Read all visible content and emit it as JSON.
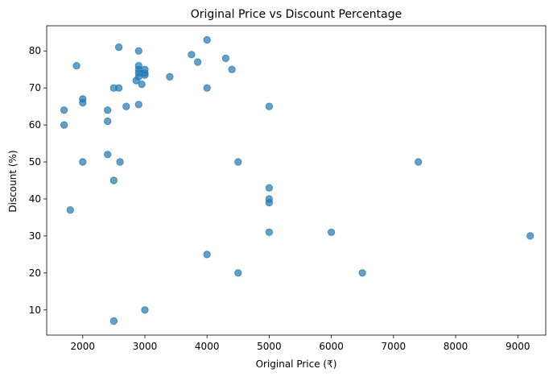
{
  "chart_data": {
    "type": "scatter",
    "title": "Original Price vs Discount Percentage",
    "xlabel": "Original Price (₹)",
    "ylabel": "Discount (%)",
    "xlim": [
      1420,
      9450
    ],
    "ylim": [
      3.2,
      86.8
    ],
    "xticks": [
      2000,
      3000,
      4000,
      5000,
      6000,
      7000,
      8000,
      9000
    ],
    "yticks": [
      10,
      20,
      30,
      40,
      50,
      60,
      70,
      80
    ],
    "grid": false,
    "marker_color": "#1f77b4",
    "marker_alpha": 0.7,
    "points": [
      {
        "x": 1700,
        "y": 64
      },
      {
        "x": 1700,
        "y": 60
      },
      {
        "x": 1800,
        "y": 37
      },
      {
        "x": 1900,
        "y": 76
      },
      {
        "x": 2000,
        "y": 67
      },
      {
        "x": 2000,
        "y": 66
      },
      {
        "x": 2000,
        "y": 50
      },
      {
        "x": 2400,
        "y": 64
      },
      {
        "x": 2400,
        "y": 61
      },
      {
        "x": 2400,
        "y": 52
      },
      {
        "x": 2500,
        "y": 70
      },
      {
        "x": 2500,
        "y": 45
      },
      {
        "x": 2500,
        "y": 7
      },
      {
        "x": 2580,
        "y": 81
      },
      {
        "x": 2580,
        "y": 70
      },
      {
        "x": 2600,
        "y": 50
      },
      {
        "x": 2700,
        "y": 65
      },
      {
        "x": 2860,
        "y": 72
      },
      {
        "x": 2900,
        "y": 80
      },
      {
        "x": 2900,
        "y": 76
      },
      {
        "x": 2900,
        "y": 75
      },
      {
        "x": 2900,
        "y": 74
      },
      {
        "x": 2900,
        "y": 73
      },
      {
        "x": 2900,
        "y": 65.5
      },
      {
        "x": 2950,
        "y": 71
      },
      {
        "x": 3000,
        "y": 75
      },
      {
        "x": 3000,
        "y": 74
      },
      {
        "x": 3000,
        "y": 73.5
      },
      {
        "x": 3000,
        "y": 10
      },
      {
        "x": 3400,
        "y": 73
      },
      {
        "x": 3750,
        "y": 79
      },
      {
        "x": 3850,
        "y": 77
      },
      {
        "x": 4000,
        "y": 83
      },
      {
        "x": 4000,
        "y": 70
      },
      {
        "x": 4000,
        "y": 25
      },
      {
        "x": 4300,
        "y": 78
      },
      {
        "x": 4400,
        "y": 75
      },
      {
        "x": 4500,
        "y": 50
      },
      {
        "x": 4500,
        "y": 20
      },
      {
        "x": 5000,
        "y": 65
      },
      {
        "x": 5000,
        "y": 43
      },
      {
        "x": 5000,
        "y": 40
      },
      {
        "x": 5000,
        "y": 39
      },
      {
        "x": 5000,
        "y": 31
      },
      {
        "x": 6000,
        "y": 31
      },
      {
        "x": 6500,
        "y": 20
      },
      {
        "x": 7400,
        "y": 50
      },
      {
        "x": 9200,
        "y": 30
      }
    ]
  }
}
